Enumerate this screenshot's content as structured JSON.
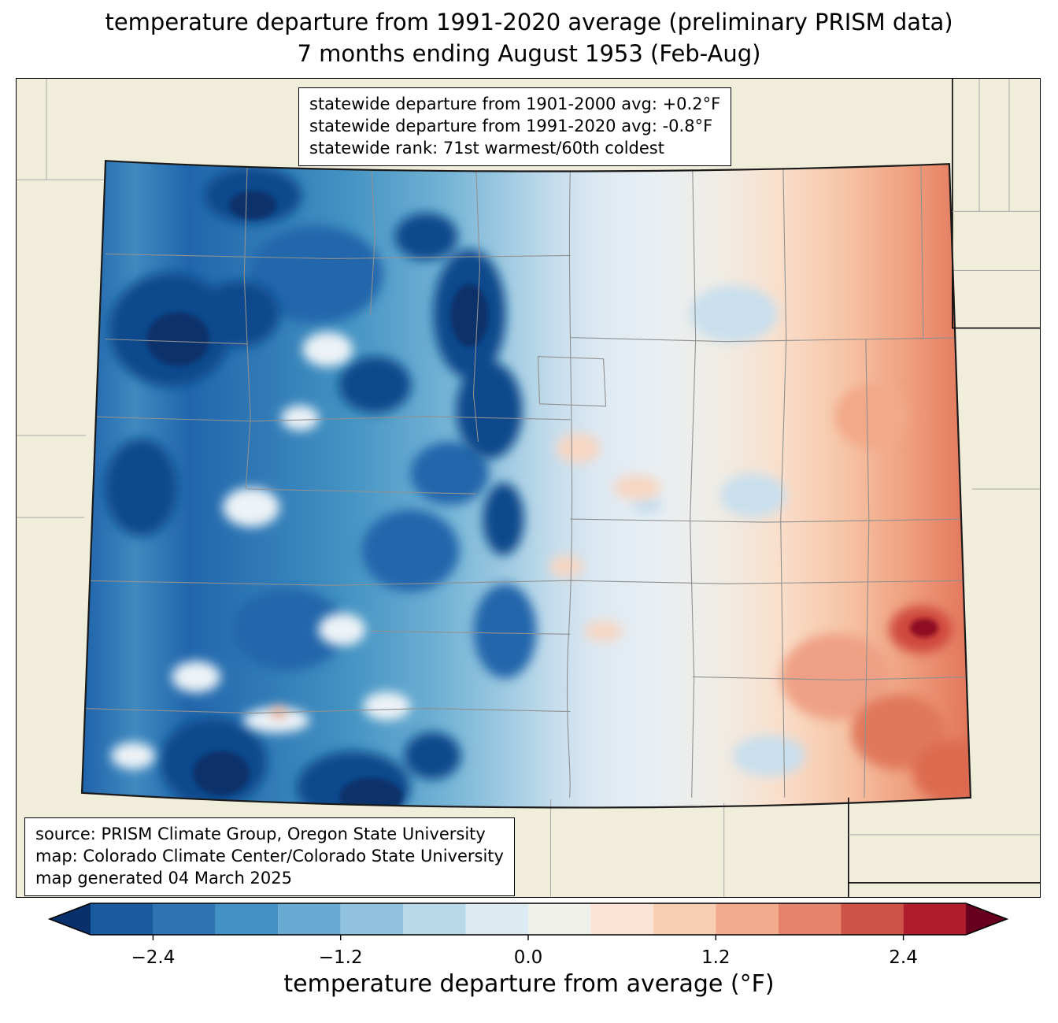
{
  "title": {
    "line1": "temperature departure from 1991-2020 average (preliminary PRISM data)",
    "line2": "7 months ending August 1953 (Feb-Aug)"
  },
  "stats_box": {
    "line1": "statewide departure from 1901-2000 avg: +0.2°F",
    "line2": "statewide departure from 1991-2020 avg: -0.8°F",
    "line3": "statewide rank: 71st warmest/60th coldest"
  },
  "source_box": {
    "line1": "source: PRISM Climate Group, Oregon State University",
    "line2": "map: Colorado Climate Center/Colorado State University",
    "line3": "map generated 04 March 2025"
  },
  "colorbar": {
    "label": "temperature departure from average (°F)",
    "min": -2.8,
    "max": 2.8,
    "boundaries": [
      -2.8,
      -2.4,
      -2.0,
      -1.6,
      -1.2,
      -0.8,
      -0.4,
      0.0,
      0.4,
      0.8,
      1.2,
      1.6,
      2.0,
      2.4,
      2.8
    ],
    "colors": [
      "#1a5a9e",
      "#2e74b5",
      "#4292c6",
      "#69aad2",
      "#91c3de",
      "#b9d8ea",
      "#dcebf2",
      "#f1f1ec",
      "#fbe4d5",
      "#f9cfb4",
      "#f2ab8c",
      "#e4836a",
      "#cd5346",
      "#b01c2e"
    ],
    "under_color": "#08306b",
    "over_color": "#67001f",
    "ticks": [
      {
        "value": -2.4,
        "label": "−2.4"
      },
      {
        "value": -1.2,
        "label": "−1.2"
      },
      {
        "value": 0.0,
        "label": "0.0"
      },
      {
        "value": 1.2,
        "label": "1.2"
      },
      {
        "value": 2.4,
        "label": "2.4"
      }
    ]
  },
  "map": {
    "background_color": "#f0edda",
    "county_line_color": "#909090",
    "state_border_color": "#1a1a1a"
  }
}
